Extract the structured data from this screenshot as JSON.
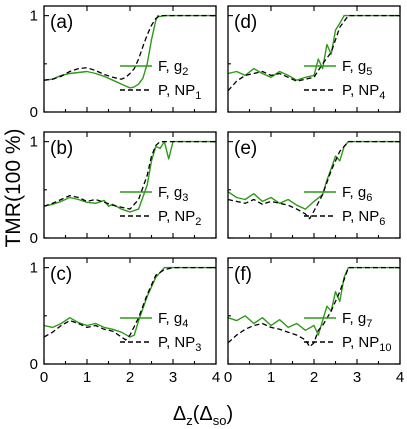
{
  "figure": {
    "ylabel": "TMR(100 %)",
    "xlabel_main": "Δ",
    "xlabel_sub": "z",
    "xlabel_paren_open": "(Δ",
    "xlabel_paren_sub": "so",
    "xlabel_paren_close": ")"
  },
  "colors": {
    "F": "#2e9a18",
    "P": "#000000"
  },
  "chart_data": [
    {
      "type": "line",
      "panel_label": "(a)",
      "xlim": [
        0,
        4
      ],
      "ylim": [
        0,
        1.1
      ],
      "xticks": [
        "0",
        "1",
        "2",
        "3",
        "4"
      ],
      "yticks": [
        "0",
        "1"
      ],
      "legend": [
        {
          "series": "F",
          "text": "F, g",
          "sub": "2"
        },
        {
          "series": "P",
          "text": "P, NP",
          "sub": "1"
        }
      ],
      "series": [
        {
          "name": "F, g2",
          "style": "solid",
          "x": [
            0,
            0.2,
            0.4,
            0.6,
            0.8,
            1.0,
            1.2,
            1.4,
            1.6,
            1.8,
            2.0,
            2.1,
            2.2,
            2.3,
            2.4,
            2.5,
            2.6,
            2.65,
            2.7,
            2.8,
            3.0,
            3.2,
            3.5,
            4.0
          ],
          "y": [
            0.33,
            0.34,
            0.38,
            0.4,
            0.41,
            0.42,
            0.4,
            0.37,
            0.33,
            0.29,
            0.25,
            0.26,
            0.29,
            0.35,
            0.5,
            0.75,
            0.95,
            1.0,
            0.99,
            1.0,
            1.0,
            1.0,
            1.0,
            1.0
          ]
        },
        {
          "name": "P, NP1",
          "style": "dashed",
          "x": [
            0,
            0.2,
            0.4,
            0.6,
            0.8,
            1.0,
            1.2,
            1.4,
            1.6,
            1.8,
            1.9,
            2.0,
            2.1,
            2.2,
            2.3,
            2.4,
            2.5,
            2.6,
            2.7,
            2.8,
            3.0,
            3.5,
            4.0
          ],
          "y": [
            0.33,
            0.34,
            0.37,
            0.42,
            0.45,
            0.46,
            0.43,
            0.39,
            0.36,
            0.34,
            0.36,
            0.4,
            0.45,
            0.55,
            0.68,
            0.8,
            0.9,
            0.97,
            1.0,
            1.0,
            1.0,
            1.0,
            1.0
          ]
        }
      ]
    },
    {
      "type": "line",
      "panel_label": "(b)",
      "xlim": [
        0,
        4
      ],
      "ylim": [
        0,
        1.1
      ],
      "xticks": [
        "0",
        "1",
        "2",
        "3",
        "4"
      ],
      "yticks": [
        "0",
        "1"
      ],
      "legend": [
        {
          "series": "F",
          "text": "F, g",
          "sub": "3"
        },
        {
          "series": "P",
          "text": "P, NP",
          "sub": "2"
        }
      ],
      "series": [
        {
          "name": "F, g3",
          "style": "solid",
          "x": [
            0,
            0.2,
            0.4,
            0.6,
            0.8,
            1.0,
            1.2,
            1.4,
            1.5,
            1.6,
            1.8,
            2.0,
            2.2,
            2.4,
            2.5,
            2.6,
            2.7,
            2.8,
            2.9,
            3.0,
            3.2,
            3.5,
            4.0
          ],
          "y": [
            0.33,
            0.35,
            0.38,
            0.42,
            0.4,
            0.37,
            0.36,
            0.39,
            0.33,
            0.35,
            0.3,
            0.27,
            0.3,
            0.55,
            0.8,
            0.95,
            0.93,
            1.0,
            0.82,
            1.0,
            1.0,
            1.0,
            1.0
          ]
        },
        {
          "name": "P, NP2",
          "style": "dashed",
          "x": [
            0,
            0.2,
            0.4,
            0.6,
            0.8,
            1.0,
            1.2,
            1.4,
            1.6,
            1.8,
            2.0,
            2.2,
            2.4,
            2.5,
            2.6,
            2.7,
            2.8,
            3.0,
            3.5,
            4.0
          ],
          "y": [
            0.33,
            0.36,
            0.4,
            0.44,
            0.42,
            0.38,
            0.4,
            0.37,
            0.34,
            0.32,
            0.3,
            0.4,
            0.65,
            0.85,
            0.96,
            1.0,
            1.0,
            1.0,
            1.0,
            1.0
          ]
        }
      ]
    },
    {
      "type": "line",
      "panel_label": "(c)",
      "xlim": [
        0,
        4
      ],
      "ylim": [
        0,
        1.1
      ],
      "xticks": [
        "0",
        "1",
        "2",
        "3",
        "4"
      ],
      "yticks": [
        "0",
        "1"
      ],
      "legend": [
        {
          "series": "F",
          "text": "F, g",
          "sub": "4"
        },
        {
          "series": "P",
          "text": "P, NP",
          "sub": "3"
        }
      ],
      "series": [
        {
          "name": "F, g4",
          "style": "solid",
          "x": [
            0,
            0.2,
            0.4,
            0.6,
            0.8,
            1.0,
            1.2,
            1.4,
            1.6,
            1.8,
            2.0,
            2.1,
            2.2,
            2.4,
            2.6,
            2.8,
            3.0,
            3.2,
            3.5,
            4.0
          ],
          "y": [
            0.4,
            0.38,
            0.42,
            0.48,
            0.43,
            0.4,
            0.42,
            0.38,
            0.36,
            0.33,
            0.28,
            0.3,
            0.45,
            0.7,
            0.9,
            1.0,
            1.0,
            1.0,
            1.0,
            1.0
          ]
        },
        {
          "name": "P, NP3",
          "style": "dashed",
          "x": [
            0,
            0.2,
            0.4,
            0.6,
            0.8,
            1.0,
            1.2,
            1.4,
            1.6,
            1.8,
            1.9,
            2.0,
            2.2,
            2.4,
            2.6,
            2.8,
            3.0,
            3.5,
            4.0
          ],
          "y": [
            0.28,
            0.33,
            0.4,
            0.45,
            0.42,
            0.38,
            0.4,
            0.36,
            0.34,
            0.28,
            0.25,
            0.3,
            0.48,
            0.72,
            0.92,
            0.98,
            1.0,
            1.0,
            1.0
          ]
        }
      ]
    },
    {
      "type": "line",
      "panel_label": "(d)",
      "xlim": [
        0,
        4
      ],
      "ylim": [
        0,
        1.1
      ],
      "xticks": [
        "0",
        "1",
        "2",
        "3",
        "4"
      ],
      "yticks": [
        "0",
        "1"
      ],
      "legend": [
        {
          "series": "F",
          "text": "F, g",
          "sub": "5"
        },
        {
          "series": "P",
          "text": "P, NP",
          "sub": "4"
        }
      ],
      "series": [
        {
          "name": "F, g5",
          "style": "solid",
          "x": [
            0,
            0.2,
            0.4,
            0.6,
            0.8,
            1.0,
            1.2,
            1.4,
            1.6,
            1.8,
            2.0,
            2.1,
            2.2,
            2.3,
            2.4,
            2.5,
            2.6,
            2.7,
            2.8,
            3.0,
            3.5,
            4.0
          ],
          "y": [
            0.4,
            0.42,
            0.38,
            0.45,
            0.4,
            0.36,
            0.42,
            0.38,
            0.33,
            0.36,
            0.38,
            0.55,
            0.45,
            0.7,
            0.6,
            0.85,
            0.92,
            1.0,
            1.0,
            1.0,
            1.0,
            1.0
          ]
        },
        {
          "name": "P, NP4",
          "style": "dashed",
          "x": [
            0,
            0.2,
            0.4,
            0.6,
            0.8,
            1.0,
            1.2,
            1.4,
            1.6,
            1.8,
            2.0,
            2.2,
            2.4,
            2.6,
            2.8,
            3.0,
            3.5,
            4.0
          ],
          "y": [
            0.22,
            0.32,
            0.38,
            0.4,
            0.42,
            0.38,
            0.4,
            0.36,
            0.32,
            0.34,
            0.36,
            0.5,
            0.62,
            0.88,
            1.0,
            1.0,
            1.0,
            1.0
          ]
        }
      ]
    },
    {
      "type": "line",
      "panel_label": "(e)",
      "xlim": [
        0,
        4
      ],
      "ylim": [
        0,
        1.1
      ],
      "xticks": [
        "0",
        "1",
        "2",
        "3",
        "4"
      ],
      "yticks": [
        "0",
        "1"
      ],
      "legend": [
        {
          "series": "F",
          "text": "F, g",
          "sub": "6"
        },
        {
          "series": "P",
          "text": "P, NP",
          "sub": "6"
        }
      ],
      "series": [
        {
          "name": "F, g6",
          "style": "solid",
          "x": [
            0,
            0.2,
            0.4,
            0.6,
            0.8,
            1.0,
            1.2,
            1.4,
            1.6,
            1.8,
            2.0,
            2.2,
            2.3,
            2.4,
            2.5,
            2.6,
            2.7,
            2.8,
            3.0,
            3.5,
            4.0
          ],
          "y": [
            0.48,
            0.42,
            0.4,
            0.46,
            0.38,
            0.42,
            0.36,
            0.4,
            0.34,
            0.3,
            0.38,
            0.45,
            0.6,
            0.72,
            0.85,
            0.8,
            0.95,
            1.0,
            1.0,
            1.0,
            1.0
          ]
        },
        {
          "name": "P, NP6",
          "style": "dashed",
          "x": [
            0,
            0.2,
            0.4,
            0.6,
            0.8,
            1.0,
            1.2,
            1.4,
            1.6,
            1.8,
            1.9,
            2.0,
            2.2,
            2.4,
            2.6,
            2.8,
            3.0,
            3.5,
            4.0
          ],
          "y": [
            0.4,
            0.38,
            0.36,
            0.4,
            0.35,
            0.38,
            0.36,
            0.34,
            0.3,
            0.25,
            0.2,
            0.28,
            0.45,
            0.7,
            0.9,
            1.0,
            1.0,
            1.0,
            1.0
          ]
        }
      ]
    },
    {
      "type": "line",
      "panel_label": "(f)",
      "xlim": [
        0,
        4
      ],
      "ylim": [
        0,
        1.1
      ],
      "xticks": [
        "0",
        "1",
        "2",
        "3",
        "4"
      ],
      "yticks": [
        "0",
        "1"
      ],
      "legend": [
        {
          "series": "F",
          "text": "F, g",
          "sub": "7"
        },
        {
          "series": "P",
          "text": "P, NP",
          "sub": "10"
        }
      ],
      "series": [
        {
          "name": "F, g7",
          "style": "solid",
          "x": [
            0,
            0.2,
            0.4,
            0.6,
            0.8,
            1.0,
            1.2,
            1.4,
            1.6,
            1.8,
            2.0,
            2.1,
            2.2,
            2.3,
            2.4,
            2.5,
            2.6,
            2.7,
            2.8,
            3.0,
            3.5,
            4.0
          ],
          "y": [
            0.48,
            0.45,
            0.5,
            0.42,
            0.48,
            0.4,
            0.46,
            0.38,
            0.42,
            0.35,
            0.4,
            0.3,
            0.45,
            0.6,
            0.55,
            0.75,
            0.65,
            0.9,
            1.0,
            1.0,
            1.0,
            1.0
          ]
        },
        {
          "name": "P, NP10",
          "style": "dashed",
          "x": [
            0,
            0.2,
            0.4,
            0.6,
            0.8,
            1.0,
            1.2,
            1.4,
            1.6,
            1.8,
            1.9,
            2.0,
            2.1,
            2.2,
            2.4,
            2.6,
            2.8,
            3.0,
            3.5,
            4.0
          ],
          "y": [
            0.22,
            0.3,
            0.36,
            0.4,
            0.42,
            0.38,
            0.36,
            0.33,
            0.3,
            0.25,
            0.18,
            0.22,
            0.35,
            0.4,
            0.55,
            0.75,
            1.0,
            1.0,
            1.0,
            1.0
          ]
        }
      ]
    }
  ]
}
